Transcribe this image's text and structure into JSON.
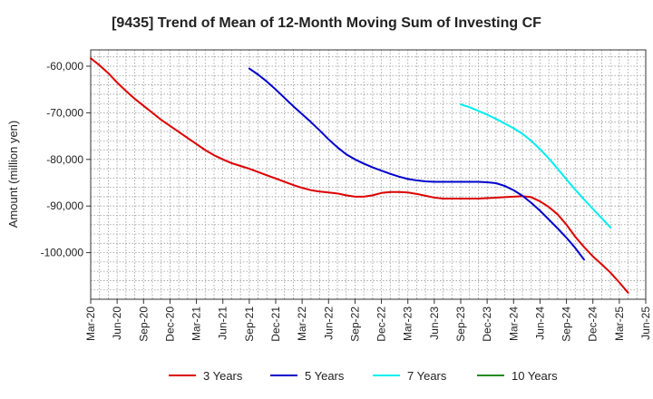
{
  "chart_data": {
    "type": "line",
    "title": "[9435]  Trend of Mean of 12-Month Moving Sum of Investing CF",
    "ylabel": "Amount (million yen)",
    "xlabel": "",
    "ylim": [
      -110000,
      -56500
    ],
    "y_ticks": [
      -60000,
      -70000,
      -80000,
      -90000,
      -100000
    ],
    "y_tick_labels": [
      "-60,000",
      "-70,000",
      "-80,000",
      "-90,000",
      "-100,000"
    ],
    "x_tick_labels": [
      "Mar-20",
      "Jun-20",
      "Sep-20",
      "Dec-20",
      "Mar-21",
      "Jun-21",
      "Sep-21",
      "Dec-21",
      "Mar-22",
      "Jun-22",
      "Sep-22",
      "Dec-22",
      "Mar-23",
      "Jun-23",
      "Sep-23",
      "Dec-23",
      "Mar-24",
      "Jun-24",
      "Sep-24",
      "Dec-24",
      "Mar-25",
      "Jun-25"
    ],
    "x_start_month_index": 0,
    "x_tick_step_months": 3,
    "x_total_months": 63,
    "grid": true,
    "legend_position": "bottom",
    "series": [
      {
        "name": "3 Years",
        "color": "#dd0000",
        "start_month": 0,
        "values": [
          -58300,
          -59800,
          -61500,
          -63500,
          -65300,
          -67000,
          -68500,
          -70000,
          -71500,
          -72800,
          -74100,
          -75400,
          -76700,
          -78000,
          -79100,
          -80000,
          -80800,
          -81400,
          -82000,
          -82700,
          -83400,
          -84100,
          -84800,
          -85500,
          -86100,
          -86600,
          -86900,
          -87100,
          -87300,
          -87700,
          -88000,
          -88000,
          -87700,
          -87200,
          -87000,
          -87000,
          -87100,
          -87400,
          -87800,
          -88200,
          -88400,
          -88400,
          -88400,
          -88400,
          -88400,
          -88300,
          -88200,
          -88100,
          -88000,
          -87900,
          -88100,
          -89000,
          -90200,
          -91800,
          -94000,
          -96600,
          -98800,
          -100800,
          -102500,
          -104300,
          -106400,
          -108600
        ]
      },
      {
        "name": "5 Years",
        "color": "#0000cc",
        "start_month": 18,
        "values": [
          -60500,
          -61800,
          -63300,
          -65000,
          -66800,
          -68600,
          -70300,
          -72000,
          -73800,
          -75700,
          -77400,
          -78900,
          -80000,
          -80900,
          -81700,
          -82400,
          -83100,
          -83700,
          -84200,
          -84500,
          -84700,
          -84800,
          -84800,
          -84800,
          -84800,
          -84800,
          -84800,
          -84900,
          -85100,
          -85700,
          -86600,
          -87800,
          -89300,
          -91000,
          -92900,
          -94800,
          -96800,
          -99000,
          -101500
        ]
      },
      {
        "name": "7 Years",
        "color": "#00eeee",
        "start_month": 42,
        "values": [
          -68200,
          -68800,
          -69600,
          -70400,
          -71300,
          -72300,
          -73300,
          -74500,
          -76000,
          -77800,
          -79800,
          -82000,
          -84300,
          -86500,
          -88600,
          -90600,
          -92600,
          -94600
        ]
      },
      {
        "name": "10 Years",
        "color": "#228b22",
        "start_month": 0,
        "values": []
      }
    ]
  }
}
